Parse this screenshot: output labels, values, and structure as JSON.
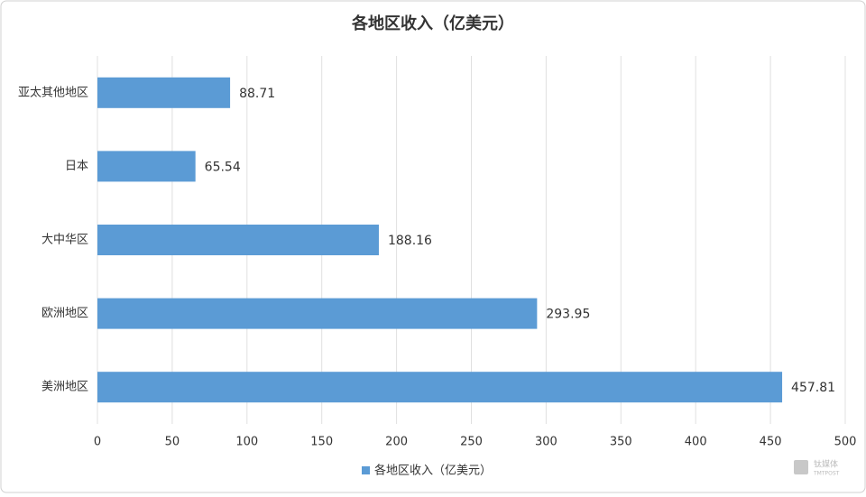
{
  "chart_data": {
    "type": "hbar",
    "title": "各地区收入（亿美元）",
    "categories": [
      "亚太其他地区",
      "日本",
      "大中华区",
      "欧洲地区",
      "美洲地区"
    ],
    "series": [
      {
        "name": "各地区收入（亿美元）",
        "color": "#5b9bd5",
        "values": [
          88.71,
          65.54,
          188.16,
          293.95,
          457.81
        ]
      }
    ],
    "xlim": [
      0,
      500
    ],
    "xticks": [
      0,
      50,
      100,
      150,
      200,
      250,
      300,
      350,
      400,
      450,
      500
    ],
    "grid": true,
    "legend": "bottom",
    "data_labels": true
  },
  "watermark": {
    "name": "钛媒体",
    "sub": "TMTPOST"
  }
}
